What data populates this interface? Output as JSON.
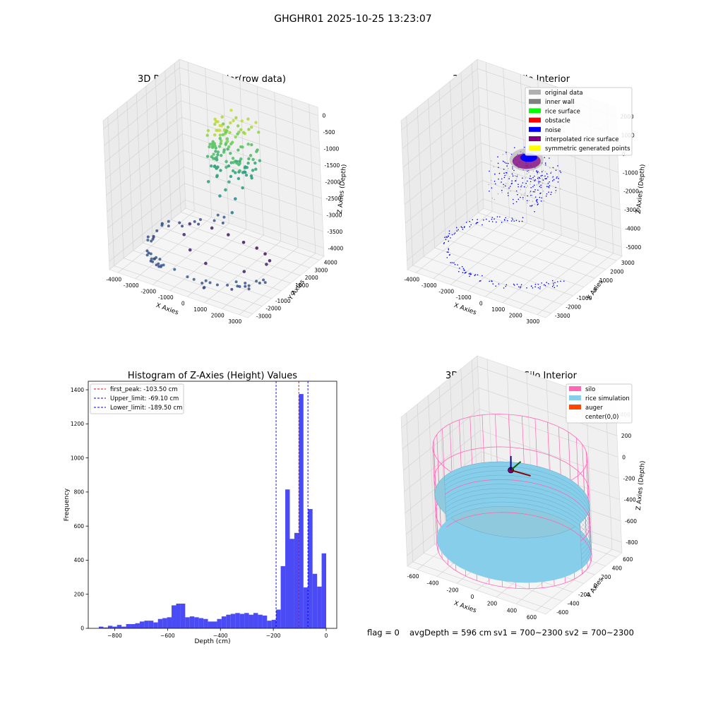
{
  "figure": {
    "title": "GHGHR01 2025-10-25 13:23:07",
    "footer": {
      "flag": "flag = 0",
      "avg_depth": "avgDepth = 596 cm",
      "sv1": "sv1 = 700~2300",
      "sv2": "sv2 = 700~2300"
    }
  },
  "chart_data": [
    {
      "type": "scatter",
      "projection": "3d",
      "title": "3D Plot of Silo Interior(row data)",
      "xlabel": "X Axies",
      "ylabel": "Y Axies",
      "zlabel": "Z Axies (Depth)",
      "xticks": [
        "-4000",
        "-3000",
        "-2000",
        "-1000",
        "0",
        "1000",
        "2000",
        "3000"
      ],
      "yticks": [
        "-3000",
        "-2000",
        "-1000",
        "0",
        "1000",
        "2000",
        "3000",
        "4000"
      ],
      "zticks": [
        "-4000",
        "-3500",
        "-3000",
        "-2500",
        "-2000",
        "-1500",
        "-1000",
        "-500",
        "0"
      ],
      "xlim": [
        -4300,
        3500
      ],
      "ylim": [
        -3400,
        4200
      ],
      "zlim": [
        -4100,
        200
      ],
      "colormap": "viridis",
      "series": [
        {
          "x": [
            -2500,
            -1600,
            -800,
            0,
            800,
            1500,
            2100,
            2500,
            1800,
            -200,
            -1300,
            -2200
          ],
          "y": [
            1500,
            2100,
            2300,
            2400,
            2300,
            1900,
            1300,
            300,
            -700,
            -1000,
            -600,
            400
          ],
          "z": [
            -3600,
            -3700,
            -3800,
            -3900,
            -3900,
            -3850,
            -3800,
            -3600,
            -3700,
            -3750,
            -3650,
            -3600
          ]
        },
        {
          "x": [
            -300,
            100,
            500,
            300,
            -500,
            700,
            900,
            -100,
            200,
            400
          ],
          "y": [
            600,
            900,
            400,
            -200,
            100,
            600,
            -100,
            300,
            700,
            200
          ],
          "z": [
            -1400,
            -1200,
            -1600,
            -1900,
            -1700,
            -2100,
            -2300,
            -1500,
            -1300,
            -1800
          ]
        },
        {
          "x": [
            0,
            150,
            -150,
            100,
            -80
          ],
          "y": [
            400,
            300,
            500,
            600,
            200
          ],
          "z": [
            -200,
            -150,
            -250,
            -100,
            -300
          ]
        }
      ]
    },
    {
      "type": "scatter",
      "projection": "3d",
      "title": "3D classify of Silo Interior",
      "xlabel": "X Axies",
      "ylabel": "Y Axies",
      "zlabel": "Z Axies (Depth)",
      "xticks": [
        "-4000",
        "-3000",
        "-2000",
        "-1000",
        "0",
        "1000",
        "2000",
        "3000"
      ],
      "yticks": [
        "-3000",
        "-2000",
        "-1000",
        "0",
        "1000",
        "2000",
        "3000"
      ],
      "zticks": [
        "-5000",
        "-4000",
        "-3000",
        "-2000",
        "-1000",
        "0",
        "1000",
        "2000"
      ],
      "xlim": [
        -4300,
        3500
      ],
      "ylim": [
        -3400,
        3600
      ],
      "zlim": [
        -5300,
        2300
      ],
      "legend": {
        "placement": "upper right",
        "items": [
          {
            "label": "original data",
            "color": "#b0b0b0"
          },
          {
            "label": "inner wall",
            "color": "#808080"
          },
          {
            "label": "rice surface",
            "color": "#00ff00"
          },
          {
            "label": "obstacle",
            "color": "#ff0000"
          },
          {
            "label": "noise",
            "color": "#0000ff"
          },
          {
            "label": "interpolated rice surface",
            "color": "#800080"
          },
          {
            "label": "symmetric generated points",
            "color": "#ffff00"
          }
        ]
      }
    },
    {
      "type": "bar",
      "title": "Histogram of Z-Axies (Height) Values",
      "xlabel": "Depth (cm)",
      "ylabel": "Frequency",
      "xlim": [
        -900,
        40
      ],
      "ylim": [
        0,
        1450
      ],
      "xticks": [
        -800,
        -600,
        -400,
        -200,
        0
      ],
      "yticks": [
        0,
        200,
        400,
        600,
        800,
        1000,
        1200,
        1400
      ],
      "bin_width": 17.2,
      "bin_start": -860,
      "values": [
        10,
        5,
        15,
        10,
        20,
        10,
        25,
        25,
        30,
        40,
        45,
        45,
        35,
        55,
        60,
        65,
        135,
        145,
        145,
        65,
        70,
        65,
        60,
        55,
        40,
        40,
        55,
        70,
        80,
        85,
        90,
        85,
        90,
        80,
        90,
        80,
        75,
        45,
        50,
        110,
        365,
        815,
        525,
        560,
        1375,
        240,
        700,
        320,
        245,
        440
      ],
      "bar_color": "#4b4bf5",
      "grid": false,
      "legend": {
        "placement": "upper left",
        "items": [
          {
            "label": "first_peak: -103.50 cm",
            "color": "#ff0000",
            "x": -103.5
          },
          {
            "label": "Upper_limit: -69.10 cm",
            "color": "#0000ff",
            "x": -69.1
          },
          {
            "label": "Lower_limit: -189.50 cm",
            "color": "#0000ff",
            "x": -189.5
          }
        ]
      }
    },
    {
      "type": "surface",
      "projection": "3d",
      "title": "3D simulation of Silo Interior",
      "xlabel": "X Axies",
      "ylabel": "Y Axies",
      "zlabel": "Z Axies (Depth)",
      "xticks": [
        "-600",
        "-400",
        "-200",
        "0",
        "200",
        "400",
        "600"
      ],
      "yticks": [
        "-600",
        "-400",
        "-200",
        "0",
        "200",
        "400",
        "600"
      ],
      "zticks": [
        "-800",
        "-600",
        "-400",
        "-200",
        "0",
        "200",
        "400"
      ],
      "legend": {
        "placement": "upper right",
        "items": [
          {
            "label": "silo",
            "color": "#ff69b4"
          },
          {
            "label": "rice simulation",
            "color": "#87ceeb"
          },
          {
            "label": "auger",
            "color": "#ff4500"
          },
          {
            "label": "center(0,0)",
            "color": "#ffffff"
          }
        ]
      }
    }
  ]
}
